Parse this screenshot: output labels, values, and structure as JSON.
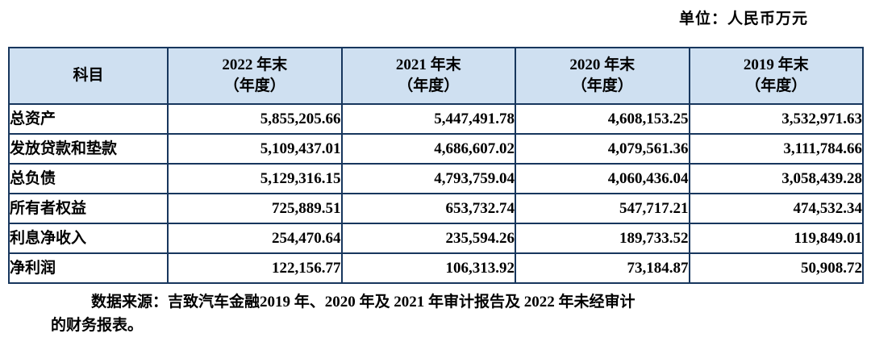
{
  "page": {
    "unit_label": "单位：人民币万元",
    "footnote_line1": "数据来源：吉致汽车金融2019 年、2020 年及 2021 年审计报告及 2022 年未经审计",
    "footnote_line2": "的财务报表。"
  },
  "colors": {
    "header_bg": "#cfe0f1",
    "border": "#17365d",
    "text": "#000000"
  },
  "table": {
    "header": {
      "subject": "科目",
      "columns": [
        {
          "line1": "2022 年末",
          "line2": "（年度）"
        },
        {
          "line1": "2021 年末",
          "line2": "（年度）"
        },
        {
          "line1": "2020 年末",
          "line2": "（年度）"
        },
        {
          "line1": "2019 年末",
          "line2": "（年度）"
        }
      ]
    },
    "rows": [
      {
        "label": "总资产",
        "values": [
          "5,855,205.66",
          "5,447,491.78",
          "4,608,153.25",
          "3,532,971.63"
        ]
      },
      {
        "label": "发放贷款和垫款",
        "values": [
          "5,109,437.01",
          "4,686,607.02",
          "4,079,561.36",
          "3,111,784.66"
        ]
      },
      {
        "label": "总负债",
        "values": [
          "5,129,316.15",
          "4,793,759.04",
          "4,060,436.04",
          "3,058,439.28"
        ]
      },
      {
        "label": "所有者权益",
        "values": [
          "725,889.51",
          "653,732.74",
          "547,717.21",
          "474,532.34"
        ]
      },
      {
        "label": "利息净收入",
        "values": [
          "254,470.64",
          "235,594.26",
          "189,733.52",
          "119,849.01"
        ]
      },
      {
        "label": "净利润",
        "values": [
          "122,156.77",
          "106,313.92",
          "73,184.87",
          "50,908.72"
        ]
      }
    ]
  }
}
